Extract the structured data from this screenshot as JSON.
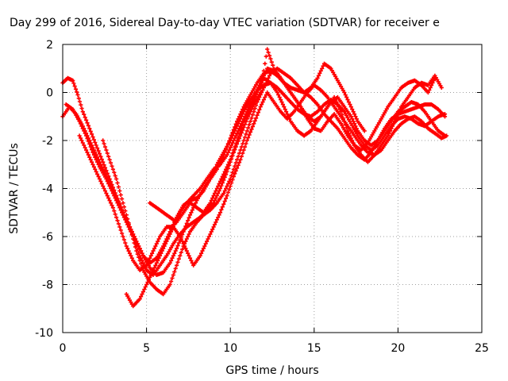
{
  "chart_data": {
    "type": "scatter",
    "title": "Day 299 of 2016, Sidereal Day-to-day VTEC variation (SDTVAR) for receiver e",
    "xlabel": "GPS time / hours",
    "ylabel": "SDTVAR / TECUs",
    "xlim": [
      0,
      25
    ],
    "ylim": [
      -10,
      2
    ],
    "xticks": [
      "0",
      "5",
      "10",
      "15",
      "20",
      "25"
    ],
    "yticks": [
      "2",
      "0",
      "-2",
      "-4",
      "-6",
      "-8",
      "-10"
    ],
    "grid": true,
    "legend": "none",
    "marker": "+",
    "color": "#ff0000",
    "series": [
      {
        "x": [
          0.0,
          0.3,
          0.6,
          0.9,
          1.2,
          1.6,
          2.0,
          2.4,
          2.8,
          3.2,
          3.6,
          4.0,
          4.4,
          4.8,
          5.2,
          5.6,
          6.0,
          6.4,
          6.8,
          7.2,
          7.6,
          8.0,
          8.4,
          8.8,
          9.2,
          9.6,
          10.0,
          10.4,
          10.8,
          11.2,
          11.6,
          12.0,
          12.4,
          12.8,
          13.2,
          13.6,
          14.0,
          14.4,
          14.8,
          15.2,
          15.6,
          16.0,
          16.4,
          16.8,
          17.2,
          17.6,
          18.0,
          18.4,
          18.8,
          19.2,
          19.6,
          20.0,
          20.4,
          20.8,
          21.2,
          21.6,
          22.0,
          22.4,
          22.8
        ],
        "y": [
          0.4,
          0.6,
          0.5,
          -0.1,
          -0.8,
          -1.5,
          -2.2,
          -2.9,
          -3.6,
          -4.3,
          -5.0,
          -5.6,
          -6.2,
          -6.8,
          -7.3,
          -7.6,
          -7.5,
          -7.1,
          -6.5,
          -5.8,
          -5.1,
          -4.5,
          -4.0,
          -3.6,
          -3.2,
          -2.6,
          -1.9,
          -1.2,
          -0.6,
          -0.1,
          0.4,
          0.8,
          0.9,
          0.7,
          0.4,
          0.2,
          0.1,
          0.0,
          -0.2,
          -0.5,
          -0.9,
          -1.2,
          -1.5,
          -1.9,
          -2.3,
          -2.6,
          -2.8,
          -2.5,
          -2.0,
          -1.5,
          -1.1,
          -0.9,
          -0.8,
          -0.7,
          -0.6,
          -0.5,
          -0.5,
          -0.7,
          -1.0
        ]
      },
      {
        "x": [
          0.0,
          0.4,
          0.8,
          1.2,
          1.6,
          2.0,
          2.4,
          2.8,
          3.2,
          3.6,
          4.0,
          4.4,
          4.8,
          5.2,
          5.6,
          6.0,
          6.4,
          6.8,
          7.2,
          7.6,
          8.0,
          8.4,
          8.8,
          9.2,
          9.6,
          10.0,
          10.4,
          10.8,
          11.2,
          11.6,
          12.0,
          12.4,
          12.8,
          13.2,
          13.6,
          14.0,
          14.4,
          14.8,
          15.2,
          15.6,
          16.0,
          16.4,
          16.8,
          17.2,
          17.6,
          18.0,
          18.4,
          18.8,
          19.2,
          19.6,
          20.0,
          20.4,
          20.8,
          21.2,
          21.6,
          22.0,
          22.4,
          22.8
        ],
        "y": [
          -1.0,
          -0.6,
          -0.9,
          -1.4,
          -2.0,
          -2.6,
          -3.2,
          -3.8,
          -4.4,
          -5.0,
          -5.6,
          -6.2,
          -6.8,
          -7.1,
          -6.9,
          -6.4,
          -5.8,
          -5.2,
          -4.7,
          -4.5,
          -4.4,
          -4.1,
          -3.6,
          -3.0,
          -2.5,
          -2.0,
          -1.4,
          -0.8,
          -0.3,
          0.1,
          0.3,
          0.4,
          0.2,
          -0.1,
          -0.4,
          -0.7,
          -0.9,
          -1.0,
          -0.8,
          -0.5,
          -0.3,
          -0.5,
          -0.8,
          -1.3,
          -1.8,
          -2.2,
          -2.4,
          -2.2,
          -1.8,
          -1.4,
          -1.1,
          -1.0,
          -1.1,
          -1.3,
          -1.4,
          -1.2,
          -1.0,
          -0.9
        ]
      },
      {
        "x": [
          0.2,
          0.6,
          1.0,
          1.4,
          1.8,
          2.2,
          2.6,
          3.0,
          3.4,
          3.8,
          4.2,
          4.6,
          5.0,
          5.4,
          5.8,
          6.2,
          6.6,
          7.0,
          7.4,
          7.8,
          8.2,
          8.6,
          9.0,
          9.4,
          9.8,
          10.2,
          10.6,
          11.0,
          11.4,
          11.8,
          12.2,
          12.6,
          13.0,
          13.4,
          13.8,
          14.2,
          14.6,
          15.0,
          15.4,
          15.8,
          16.2,
          16.6,
          17.0,
          17.4,
          17.8,
          18.2,
          18.6,
          19.0,
          19.4,
          19.8,
          20.2,
          20.6,
          21.0,
          21.4,
          21.8,
          22.2
        ],
        "y": [
          -0.5,
          -0.7,
          -1.2,
          -1.8,
          -2.5,
          -3.1,
          -3.6,
          -4.2,
          -4.8,
          -5.4,
          -6.0,
          -6.8,
          -7.4,
          -7.6,
          -7.2,
          -6.8,
          -6.3,
          -5.9,
          -5.6,
          -5.4,
          -5.2,
          -4.9,
          -4.6,
          -4.0,
          -3.3,
          -2.5,
          -1.8,
          -1.1,
          -0.5,
          0.0,
          1.8,
          1.0,
          0.6,
          0.2,
          -0.2,
          -0.6,
          -1.1,
          -1.5,
          -1.6,
          -1.2,
          -0.9,
          -1.3,
          -1.8,
          -2.2,
          -2.4,
          -2.1,
          -1.6,
          -1.1,
          -0.6,
          -0.2,
          0.2,
          0.4,
          0.5,
          0.3,
          0.0,
          0.6
        ]
      },
      {
        "x": [
          1.0,
          1.4,
          1.8,
          2.2,
          2.6,
          3.0,
          3.4,
          3.8,
          4.2,
          4.6,
          5.0,
          5.4,
          5.8,
          6.2,
          6.6,
          7.0,
          7.4,
          7.8,
          8.2,
          8.6,
          9.0,
          9.4,
          9.8,
          10.2,
          10.6,
          11.0,
          11.4,
          11.8,
          12.2,
          12.6,
          13.0,
          13.4,
          13.8,
          14.2,
          14.6,
          15.0,
          15.4,
          15.8,
          16.2,
          16.6,
          17.0,
          17.4,
          17.8,
          18.2,
          18.6,
          19.0,
          19.4,
          19.8,
          20.2,
          20.6,
          21.0,
          21.4,
          21.8,
          22.2,
          22.6,
          22.9
        ],
        "y": [
          -1.8,
          -2.4,
          -3.0,
          -3.6,
          -4.2,
          -4.8,
          -5.6,
          -6.4,
          -7.0,
          -7.4,
          -7.2,
          -6.6,
          -6.0,
          -5.6,
          -5.6,
          -6.0,
          -6.6,
          -7.2,
          -6.8,
          -6.2,
          -5.6,
          -5.0,
          -4.3,
          -3.5,
          -2.8,
          -2.0,
          -1.3,
          -0.6,
          0.0,
          -0.4,
          -0.8,
          -1.1,
          -0.8,
          -0.4,
          0.0,
          0.3,
          0.1,
          -0.2,
          -0.6,
          -1.0,
          -1.4,
          -1.8,
          -2.2,
          -2.5,
          -2.6,
          -2.4,
          -2.0,
          -1.6,
          -1.3,
          -1.1,
          -1.0,
          -1.2,
          -1.5,
          -1.7,
          -1.9,
          -1.8
        ]
      },
      {
        "x": [
          2.4,
          2.8,
          3.2,
          3.6,
          4.0,
          4.4,
          4.8,
          5.2,
          5.6,
          6.0,
          6.4,
          6.8,
          7.2,
          7.6,
          8.0,
          8.4,
          8.8,
          9.2,
          9.6,
          10.0,
          10.4,
          10.8,
          11.2,
          11.6,
          12.0,
          12.4,
          12.8,
          13.2,
          13.6,
          14.0,
          14.4,
          14.8,
          15.2,
          15.6,
          16.0,
          16.4,
          16.8,
          17.2,
          17.6,
          18.0
        ],
        "y": [
          -2.0,
          -2.8,
          -3.6,
          -4.6,
          -5.6,
          -6.6,
          -7.4,
          -7.9,
          -8.2,
          -8.4,
          -8.0,
          -7.2,
          -6.4,
          -5.8,
          -5.4,
          -5.1,
          -4.9,
          -4.6,
          -4.2,
          -3.6,
          -2.8,
          -2.0,
          -1.2,
          -0.4,
          0.2,
          0.8,
          1.0,
          0.8,
          0.6,
          0.3,
          0.0,
          0.2,
          0.6,
          1.2,
          1.0,
          0.5,
          0.0,
          -0.6,
          -1.2,
          -1.6
        ]
      },
      {
        "x": [
          3.8,
          4.2,
          4.6,
          5.0,
          5.4,
          5.8,
          6.2,
          6.6,
          7.0,
          7.4,
          7.8,
          8.2,
          8.6,
          9.0,
          9.4,
          9.8,
          10.2,
          10.6,
          11.0,
          11.4,
          11.8,
          12.2,
          12.6,
          13.0,
          13.4,
          13.8,
          14.2,
          14.6,
          15.0,
          15.4,
          15.8,
          16.2,
          16.6,
          17.0,
          17.4,
          17.8,
          18.2,
          18.6,
          19.0,
          19.4,
          19.8,
          20.2,
          20.6,
          21.0,
          21.4,
          21.8,
          22.2,
          22.6
        ],
        "y": [
          -8.4,
          -8.9,
          -8.6,
          -8.0,
          -7.4,
          -6.8,
          -6.2,
          -5.6,
          -5.0,
          -4.6,
          -4.3,
          -4.0,
          -3.6,
          -3.2,
          -3.0,
          -2.6,
          -2.0,
          -1.4,
          -0.8,
          -0.2,
          0.4,
          1.0,
          0.9,
          0.6,
          0.2,
          -0.2,
          -0.6,
          -1.0,
          -1.2,
          -1.0,
          -0.6,
          -0.2,
          -0.8,
          -1.6,
          -2.2,
          -2.6,
          -2.9,
          -2.6,
          -2.2,
          -1.8,
          -1.2,
          -0.6,
          -0.2,
          0.2,
          0.4,
          0.3,
          0.7,
          0.2
        ]
      },
      {
        "x": [
          5.2,
          5.6,
          6.0,
          6.4,
          6.8,
          7.2,
          7.6,
          8.0,
          8.4,
          8.8,
          9.2,
          9.6,
          10.0,
          10.4,
          10.8,
          11.2,
          11.6,
          12.0,
          12.4,
          12.8,
          13.2,
          13.6,
          14.0,
          14.4,
          14.8,
          15.2,
          15.6,
          16.0,
          16.4,
          16.8,
          17.2,
          17.6,
          18.0,
          18.4,
          18.8,
          19.2,
          19.6,
          20.0,
          20.4,
          20.8,
          21.2,
          21.6,
          22.0,
          22.4,
          22.8
        ],
        "y": [
          -4.6,
          -4.8,
          -5.0,
          -5.2,
          -5.4,
          -5.0,
          -4.6,
          -4.8,
          -5.0,
          -4.6,
          -4.0,
          -3.4,
          -2.8,
          -2.0,
          -1.2,
          -0.6,
          0.0,
          0.6,
          0.4,
          0.0,
          -0.6,
          -1.2,
          -1.6,
          -1.8,
          -1.6,
          -1.2,
          -0.8,
          -0.4,
          -0.2,
          -0.6,
          -1.0,
          -1.6,
          -2.0,
          -2.2,
          -2.0,
          -1.6,
          -1.2,
          -0.8,
          -0.6,
          -0.4,
          -0.5,
          -0.8,
          -1.2,
          -1.6,
          -1.8
        ]
      }
    ]
  }
}
